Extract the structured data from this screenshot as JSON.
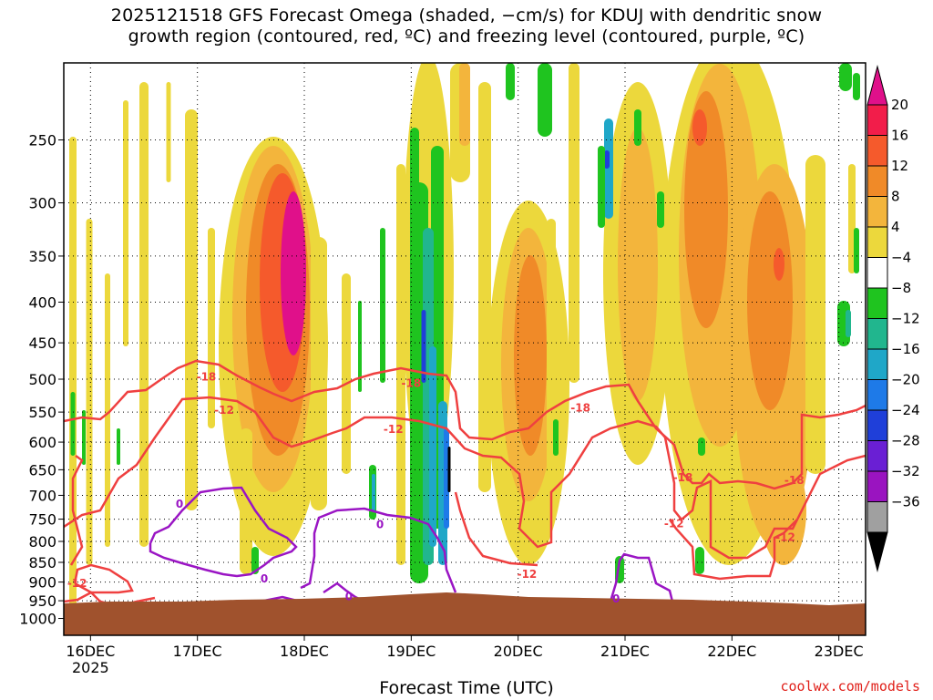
{
  "title_line1": "2025121518 GFS Forecast Omega (shaded, −cm/s) for KDUJ with dendritic snow",
  "title_line2": "growth region (contoured, red, ºC) and freezing level (contoured, purple, ºC)",
  "footer": "coolwx.com/models",
  "chart_data": {
    "type": "heatmap",
    "title": "2025121518 GFS Forecast Omega (shaded, −cm/s) for KDUJ with dendritic snow growth region (contoured, red, ºC) and freezing level (contoured, purple, ºC)",
    "xlabel": "Forecast Time (UTC)",
    "ylabel": "",
    "x_ticks": [
      {
        "date": "2025-12-16",
        "label": "16DEC",
        "sublabel": "2025"
      },
      {
        "date": "2025-12-17",
        "label": "17DEC"
      },
      {
        "date": "2025-12-18",
        "label": "18DEC"
      },
      {
        "date": "2025-12-19",
        "label": "19DEC"
      },
      {
        "date": "2025-12-20",
        "label": "20DEC"
      },
      {
        "date": "2025-12-21",
        "label": "21DEC"
      },
      {
        "date": "2025-12-22",
        "label": "22DEC"
      },
      {
        "date": "2025-12-23",
        "label": "23DEC"
      }
    ],
    "xlim": [
      "2025-12-15T18",
      "2025-12-23T06"
    ],
    "y_ticks": [
      250,
      300,
      350,
      400,
      450,
      500,
      550,
      600,
      650,
      700,
      750,
      800,
      850,
      900,
      950,
      1000
    ],
    "ylim": [
      1050,
      200
    ],
    "y_scale": "log",
    "grid": true,
    "colorbar": {
      "labels": [
        "20",
        "16",
        "12",
        "8",
        "4",
        "−4",
        "−8",
        "−12",
        "−16",
        "−20",
        "−24",
        "−28",
        "−32",
        "−36"
      ],
      "levels": [
        20,
        16,
        12,
        8,
        4,
        -4,
        -8,
        -12,
        -16,
        -20,
        -24,
        -28,
        -32,
        -36
      ],
      "colors": [
        "#f21d4a",
        "#f55a2c",
        "#f08a28",
        "#f3b53c",
        "#ecd83c",
        "#ffffff",
        "#1fc41f",
        "#21b68e",
        "#1fa7c8",
        "#1e7ae8",
        "#1f3fd9",
        "#6a1fd4",
        "#9a14c0",
        "#a0a0a0",
        "#000000"
      ],
      "top_color": "#e0108a",
      "bottom_color": "#000000"
    },
    "shading_colors": {
      "4_8": "#ecd83c",
      "8_12": "#f3b53c",
      "12_16": "#f08a28",
      "16_20": "#f55a2c",
      "20_plus": "#f02a5a",
      "max": "#e0108a",
      "neg4_8": "#1fc41f",
      "neg8_12": "#21b68e",
      "neg12_16": "#1fa7c8",
      "neg16_20": "#1e7ae8",
      "neg20_24": "#1f3fd9",
      "neg28": "#6a1fd4",
      "neg32": "#9a14c0",
      "terrain": "#a0522d"
    },
    "contour_colors": {
      "dendritic": "#ef4040",
      "freezing": "#9a15c4"
    },
    "contour_labels": [
      {
        "text": "-18",
        "date": "2025-12-17T02",
        "p": 497,
        "type": "dendritic"
      },
      {
        "text": "-12",
        "date": "2025-12-17T06",
        "p": 547,
        "type": "dendritic"
      },
      {
        "text": "-18",
        "date": "2025-12-19T00",
        "p": 506,
        "type": "dendritic"
      },
      {
        "text": "-12",
        "date": "2025-12-18T20",
        "p": 578,
        "type": "dendritic"
      },
      {
        "text": "-18",
        "date": "2025-12-20T14",
        "p": 543,
        "type": "dendritic"
      },
      {
        "text": "-12",
        "date": "2025-12-15T21",
        "p": 903,
        "type": "dendritic"
      },
      {
        "text": "-12",
        "date": "2025-12-20T02",
        "p": 880,
        "type": "dendritic"
      },
      {
        "text": "-18",
        "date": "2025-12-21T13",
        "p": 665,
        "type": "dendritic"
      },
      {
        "text": "-12",
        "date": "2025-12-21T11",
        "p": 760,
        "type": "dendritic"
      },
      {
        "text": "-18",
        "date": "2025-12-22T14",
        "p": 670,
        "type": "dendritic"
      },
      {
        "text": "-12",
        "date": "2025-12-22T12",
        "p": 790,
        "type": "dendritic"
      },
      {
        "text": "0",
        "date": "2025-12-16T20",
        "p": 718,
        "type": "freezing"
      },
      {
        "text": "0",
        "date": "2025-12-17T15",
        "p": 892,
        "type": "freezing"
      },
      {
        "text": "0",
        "date": "2025-12-18T17",
        "p": 762,
        "type": "freezing"
      },
      {
        "text": "0",
        "date": "2025-12-18T10",
        "p": 938,
        "type": "freezing"
      },
      {
        "text": "0",
        "date": "2025-12-20T22",
        "p": 945,
        "type": "freezing"
      }
    ]
  }
}
